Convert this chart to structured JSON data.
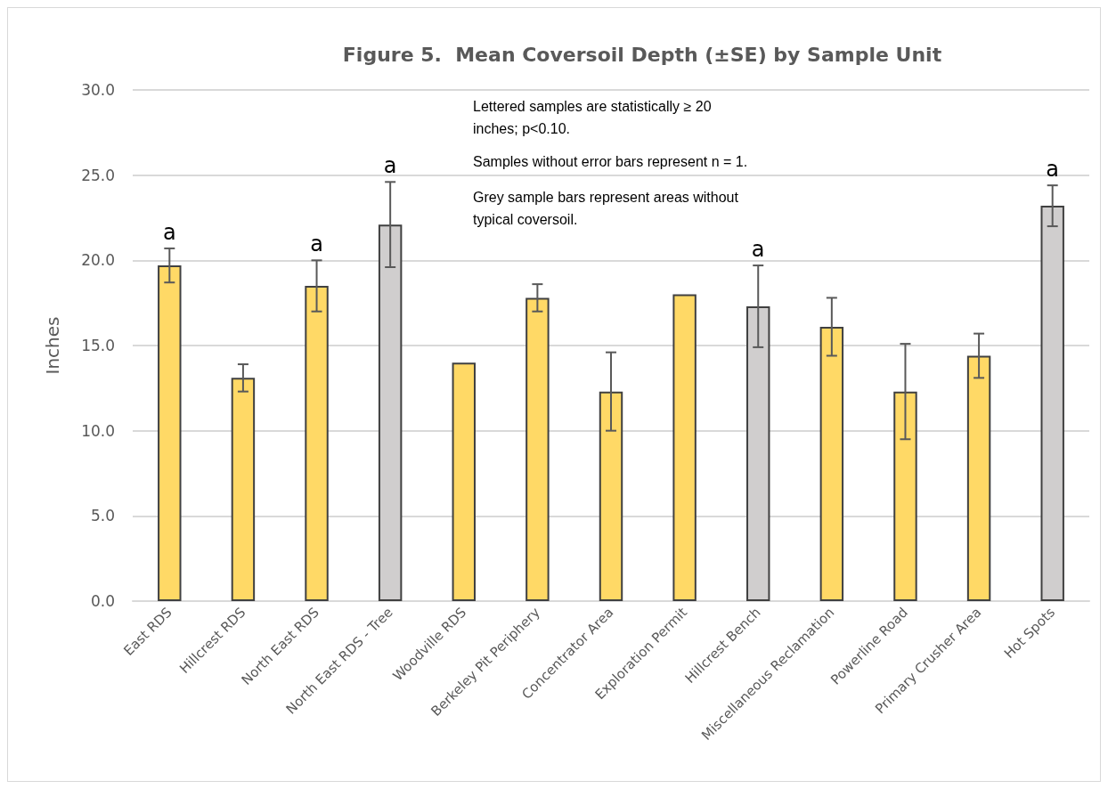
{
  "chart_data": {
    "type": "bar",
    "title": "Figure 5.  Mean Coversoil Depth (±SE) by Sample Unit",
    "ylabel": "Inches",
    "categories": [
      "East RDS",
      "Hillcrest RDS",
      "North East RDS",
      "North East RDS - Tree",
      "Woodville RDS",
      "Berkeley Pit Periphery",
      "Concentrator Area",
      "Exploration Permit",
      "Hillcrest Bench",
      "Miscellaneous Reclamation",
      "Powerline Road",
      "Primary Crusher Area",
      "Hot Spots"
    ],
    "values": [
      19.7,
      13.1,
      18.5,
      22.1,
      14.0,
      17.8,
      12.3,
      18.0,
      17.3,
      16.1,
      12.3,
      14.4,
      23.2
    ],
    "errors": [
      1.0,
      0.8,
      1.5,
      2.5,
      null,
      0.8,
      2.3,
      null,
      2.4,
      1.7,
      2.8,
      1.3,
      1.2
    ],
    "colors": [
      "#ffd966",
      "#ffd966",
      "#ffd966",
      "#d0cece",
      "#ffd966",
      "#ffd966",
      "#ffd966",
      "#ffd966",
      "#d0cece",
      "#ffd966",
      "#ffd966",
      "#ffd966",
      "#d0cece"
    ],
    "ylim": [
      0,
      30
    ],
    "yticks": [
      {
        "value": 0,
        "label": "0.0"
      },
      {
        "value": 5,
        "label": "5.0"
      },
      {
        "value": 10,
        "label": "10.0"
      },
      {
        "value": 15,
        "label": "15.0"
      },
      {
        "value": 20,
        "label": "20.0"
      },
      {
        "value": 25,
        "label": "25.0"
      },
      {
        "value": 30,
        "label": "30.0"
      }
    ],
    "grid": "y",
    "annotations": [
      {
        "text": "a",
        "x": "East RDS",
        "y": 20.7
      },
      {
        "text": "a",
        "x": "North East RDS",
        "y": 20.0
      },
      {
        "text": "a",
        "x": "North East RDS - Tree",
        "y": 24.6
      },
      {
        "text": "a",
        "x": "Hillcrest Bench",
        "y": 19.7
      },
      {
        "text": "a",
        "x": "Hot Spots",
        "y": 24.4
      },
      "Lettered samples are statistically ≥ 20 inches; p<0.10.",
      "Samples without error bars represent n = 1.",
      "Grey sample bars represent areas without typical coversoil."
    ]
  }
}
